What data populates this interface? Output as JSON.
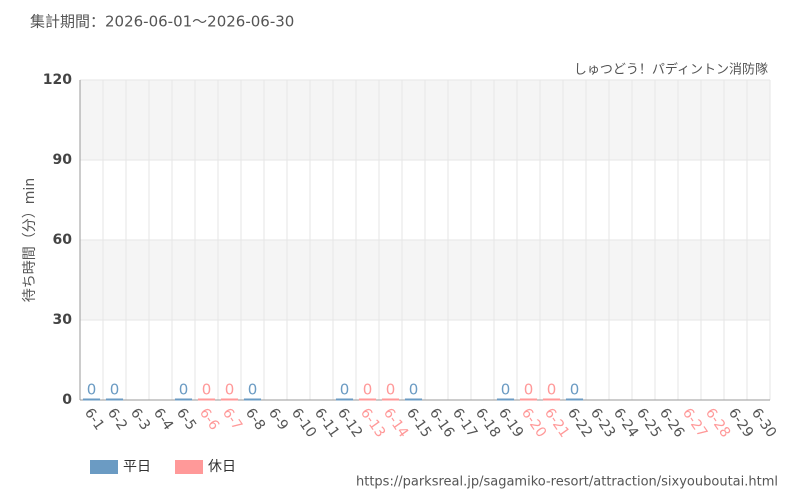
{
  "chart_data": {
    "type": "bar",
    "title": "集計期間：2026-06-01～2026-06-30",
    "subtitle": "しゅつどう！パディントン消防隊",
    "y_label": "待ち時間（分）min",
    "source": "https://parksreal.jp/sagamiko-resort/attraction/sixyouboutai.html",
    "categories": [
      "6-1",
      "6-2",
      "6-3",
      "6-4",
      "6-5",
      "6-6",
      "6-7",
      "6-8",
      "6-9",
      "6-10",
      "6-11",
      "6-12",
      "6-13",
      "6-14",
      "6-15",
      "6-16",
      "6-17",
      "6-18",
      "6-19",
      "6-20",
      "6-21",
      "6-22",
      "6-23",
      "6-24",
      "6-25",
      "6-26",
      "6-27",
      "6-28",
      "6-29",
      "6-30"
    ],
    "category_label_colors": [
      "#555",
      "#555",
      "#555",
      "#555",
      "#555",
      "#f99",
      "#f99",
      "#555",
      "#555",
      "#555",
      "#555",
      "#555",
      "#f99",
      "#f99",
      "#555",
      "#555",
      "#555",
      "#555",
      "#555",
      "#f99",
      "#f99",
      "#555",
      "#555",
      "#555",
      "#555",
      "#555",
      "#f99",
      "#f99",
      "#555",
      "#555"
    ],
    "series": [
      {
        "name": "平日",
        "color": "#6b9bc3",
        "values": [
          0,
          0,
          null,
          null,
          0,
          null,
          null,
          0,
          null,
          null,
          null,
          0,
          null,
          null,
          0,
          null,
          null,
          null,
          0,
          null,
          null,
          0,
          null,
          null,
          null,
          null,
          null,
          null,
          null,
          null
        ]
      },
      {
        "name": "休日",
        "color": "#f99",
        "values": [
          null,
          null,
          null,
          null,
          null,
          0,
          0,
          null,
          null,
          null,
          null,
          null,
          0,
          0,
          null,
          null,
          null,
          null,
          null,
          0,
          0,
          null,
          null,
          null,
          null,
          null,
          null,
          null,
          null,
          null
        ]
      }
    ],
    "ylim": [
      0,
      120
    ],
    "yticks": [
      0,
      30,
      60,
      90,
      120
    ],
    "grid": true,
    "legend": "bottom-left"
  }
}
